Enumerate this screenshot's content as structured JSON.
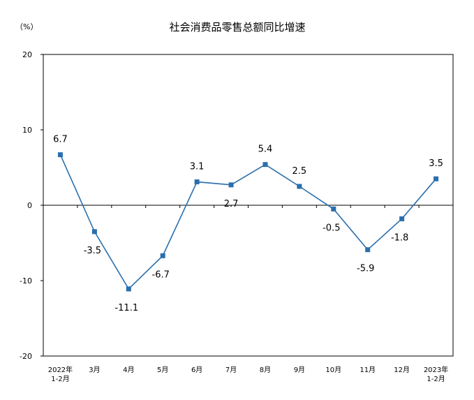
{
  "chart_data": {
    "type": "line",
    "title": "社会消费品零售总额同比增速",
    "unit_label": "（%）",
    "categories": [
      [
        "2022年",
        "1-2月"
      ],
      [
        "3月"
      ],
      [
        "4月"
      ],
      [
        "5月"
      ],
      [
        "6月"
      ],
      [
        "7月"
      ],
      [
        "8月"
      ],
      [
        "9月"
      ],
      [
        "10月"
      ],
      [
        "11月"
      ],
      [
        "12月"
      ],
      [
        "2023年",
        "1-2月"
      ]
    ],
    "series": [
      {
        "values": [
          6.7,
          -3.5,
          -11.1,
          -6.7,
          3.1,
          2.7,
          5.4,
          2.5,
          -0.5,
          -5.9,
          -1.8,
          3.5
        ],
        "labels": [
          "6.7",
          "-3.5",
          "-11.1",
          "-6.7",
          "3.1",
          "2.7",
          "5.4",
          "2.5",
          "-0.5",
          "-5.9",
          "-1.8",
          "3.5"
        ]
      }
    ],
    "yticks": [
      20,
      10,
      0,
      -10,
      -20
    ],
    "ytick_labels": [
      "20",
      "10",
      "0",
      "-10",
      "-20"
    ],
    "ylim": [
      -20,
      20
    ],
    "grid": false,
    "colors": {
      "line": "#2a6fad",
      "marker": "#2a6fad",
      "axis": "#000000"
    }
  }
}
